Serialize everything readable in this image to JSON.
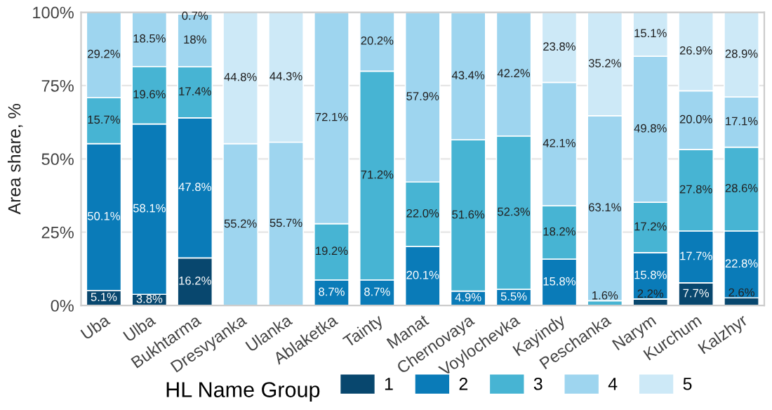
{
  "chart_data": {
    "type": "bar",
    "stacked": true,
    "ylabel": "Area share, %",
    "legend_title": "HL Name Group",
    "legend": "bottom",
    "grid": "y",
    "categories": [
      "Uba",
      "Ulba",
      "Bukhtarma",
      "Dresvyanka",
      "Ulanka",
      "Ablaketka",
      "Tainty",
      "Manat",
      "Chernovaya",
      "Voylochevka",
      "Kayindy",
      "Peschanka",
      "Narym",
      "Kurchum",
      "Kalzhyr"
    ],
    "ylim": [
      0,
      100
    ],
    "yticks": [
      {
        "value": 0,
        "label": "0%"
      },
      {
        "value": 25,
        "label": "25%"
      },
      {
        "value": 50,
        "label": "50%"
      },
      {
        "value": 75,
        "label": "75%"
      },
      {
        "value": 100,
        "label": "100%"
      }
    ],
    "series": [
      {
        "name": "1",
        "color": "#08476e",
        "values": [
          5.1,
          3.8,
          16.2,
          null,
          null,
          null,
          null,
          null,
          null,
          null,
          null,
          null,
          2.2,
          7.7,
          2.6
        ],
        "value_labels": [
          "5.1%",
          "3.8%",
          "16.2%",
          null,
          null,
          null,
          null,
          null,
          null,
          null,
          null,
          null,
          "2.2%",
          "7.7%",
          "2.6%"
        ]
      },
      {
        "name": "2",
        "color": "#0a7bb8",
        "values": [
          50.1,
          58.1,
          47.8,
          null,
          null,
          8.7,
          8.7,
          20.1,
          4.9,
          5.5,
          15.8,
          null,
          15.8,
          17.7,
          22.8
        ],
        "value_labels": [
          "50.1%",
          "58.1%",
          "47.8%",
          null,
          null,
          "8.7%",
          "8.7%",
          "20.1%",
          "4.9%",
          "5.5%",
          "15.8%",
          null,
          "15.8%",
          "17.7%",
          "22.8%"
        ]
      },
      {
        "name": "3",
        "color": "#47b4d3",
        "values": [
          15.7,
          19.6,
          17.4,
          null,
          null,
          19.2,
          71.2,
          22.0,
          51.6,
          52.3,
          18.2,
          1.6,
          17.2,
          27.8,
          28.6
        ],
        "value_labels": [
          "15.7%",
          "19.6%",
          "17.4%",
          null,
          null,
          "19.2%",
          "71.2%",
          "22.0%",
          "51.6%",
          "52.3%",
          "18.2%",
          "1.6%",
          "17.2%",
          "27.8%",
          "28.6%"
        ]
      },
      {
        "name": "4",
        "color": "#9ed5ef",
        "values": [
          29.2,
          18.5,
          18,
          55.2,
          55.7,
          72.1,
          20.2,
          57.9,
          43.4,
          42.2,
          42.1,
          63.1,
          49.8,
          20.0,
          17.1
        ],
        "value_labels": [
          "29.2%",
          "18.5%",
          "18%",
          "55.2%",
          "55.7%",
          "72.1%",
          "20.2%",
          "57.9%",
          "43.4%",
          "42.2%",
          "42.1%",
          "63.1%",
          "49.8%",
          "20.0%",
          "17.1%"
        ]
      },
      {
        "name": "5",
        "color": "#cde9f7",
        "values": [
          null,
          null,
          0.7,
          44.8,
          44.3,
          null,
          null,
          null,
          null,
          null,
          23.8,
          35.2,
          15.1,
          26.9,
          28.9
        ],
        "value_labels": [
          null,
          null,
          "0.7%",
          "44.8%",
          "44.3%",
          null,
          null,
          null,
          null,
          null,
          "23.8%",
          "35.2%",
          "15.1%",
          "26.9%",
          "28.9%"
        ]
      }
    ]
  }
}
